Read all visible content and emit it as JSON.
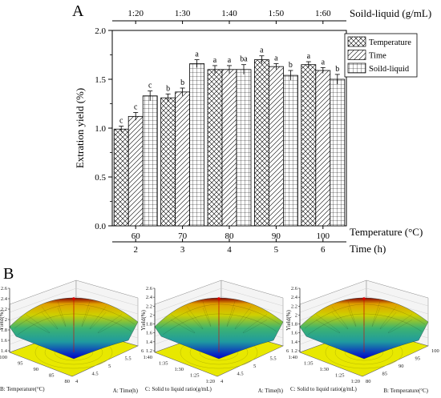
{
  "panel_labels": {
    "a": "A",
    "b": "B"
  },
  "colors": {
    "surface_high": "#8b0000",
    "surface_mid": "#3cb371",
    "surface_low": "#0000cd",
    "contour_floor": "#e8e800"
  },
  "chart_data": [
    {
      "type": "bar",
      "title": "",
      "ylabel": "Extration yield (%)",
      "ylim": [
        0,
        2.0
      ],
      "yticks": [
        "0.0",
        "0.5",
        "1.0",
        "1.5",
        "2.0"
      ],
      "yminor": 0.25,
      "bottom_axis_1": {
        "label": "Temperature (°C)",
        "ticks": [
          "60",
          "70",
          "80",
          "90",
          "100"
        ]
      },
      "bottom_axis_2": {
        "label": "Time (h)",
        "ticks": [
          "2",
          "3",
          "4",
          "5",
          "6"
        ]
      },
      "top_axis": {
        "label": "Soild-liquid (g/mL)",
        "ticks": [
          "1:20",
          "1:30",
          "1:40",
          "1:50",
          "1:60"
        ]
      },
      "legend_position": "top-right",
      "series": [
        {
          "name": "Temperature",
          "pattern": "cross",
          "values": [
            0.99,
            1.31,
            1.6,
            1.7,
            1.65
          ],
          "errors": [
            0.03,
            0.04,
            0.04,
            0.04,
            0.03
          ],
          "letters": [
            "c",
            "b",
            "a",
            "a",
            "a"
          ]
        },
        {
          "name": "Time",
          "pattern": "diag",
          "values": [
            1.12,
            1.37,
            1.6,
            1.63,
            1.59
          ],
          "errors": [
            0.04,
            0.04,
            0.04,
            0.03,
            0.03
          ],
          "letters": [
            "c",
            "b",
            "a",
            "a",
            "a"
          ]
        },
        {
          "name": "Soild-liquid",
          "pattern": "grid",
          "values": [
            1.33,
            1.66,
            1.6,
            1.54,
            1.5
          ],
          "errors": [
            0.05,
            0.04,
            0.05,
            0.05,
            0.05
          ],
          "letters": [
            "c",
            "a",
            "ba",
            "b",
            "b"
          ]
        }
      ]
    },
    {
      "type": "surface",
      "zlabel": "Yield(%)",
      "zticks": [
        "1.4",
        "1.6",
        "1.8",
        "2",
        "2.2",
        "2.4",
        "2.6"
      ],
      "left_axis": {
        "label": "B: Temperature(°C)",
        "ticks": [
          "100",
          "95",
          "90",
          "85",
          "80"
        ]
      },
      "right_axis": {
        "label": "A: Time(h)",
        "ticks": [
          "6",
          "5.5",
          "5",
          "4.5",
          "4"
        ]
      }
    },
    {
      "type": "surface",
      "zlabel": "Yield(%)",
      "zticks": [
        "1.2",
        "1.4",
        "1.6",
        "1.8",
        "2",
        "2.2",
        "2.4",
        "2.6"
      ],
      "left_axis": {
        "label": "C: Solid to liquid ratio(g/mL)",
        "ticks": [
          "1:40",
          "1:35",
          "1:30",
          "1:25",
          "1:20"
        ]
      },
      "right_axis": {
        "label": "A: Time(h)",
        "ticks": [
          "6",
          "5.5",
          "5",
          "4.5",
          "4"
        ]
      }
    },
    {
      "type": "surface",
      "zlabel": "Yield(%)",
      "zticks": [
        "1.2",
        "1.4",
        "1.6",
        "1.8",
        "2",
        "2.2",
        "2.4",
        "2.6"
      ],
      "left_axis": {
        "label": "C: Solid to liquid ratio(g/mL)",
        "ticks": [
          "1:40",
          "1:35",
          "1:30",
          "1:25",
          "1:20"
        ]
      },
      "right_axis": {
        "label": "B: Temperature(°C)",
        "ticks": [
          "100",
          "95",
          "90",
          "85",
          "80"
        ]
      }
    }
  ]
}
